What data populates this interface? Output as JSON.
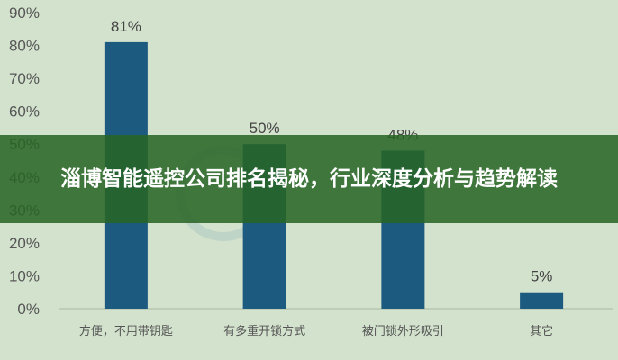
{
  "chart_data": {
    "type": "bar",
    "categories": [
      "方便，不用带钥匙",
      "有多重开锁方式",
      "被门锁外形吸引",
      "其它"
    ],
    "values": [
      81,
      50,
      48,
      5
    ],
    "data_labels": [
      "81%",
      "50%",
      "48%",
      "5%"
    ],
    "yticks": [
      "0%",
      "10%",
      "20%",
      "30%",
      "40%",
      "50%",
      "60%",
      "70%",
      "80%",
      "90%"
    ],
    "ylim": [
      0,
      90
    ],
    "grid": false,
    "bar_color": "#1d5a80",
    "background_color": "#d3e2cd"
  },
  "banner": {
    "title": "淄博智能遥控公司排名揭秘，行业深度分析与趋势解读",
    "color": "#266424"
  }
}
